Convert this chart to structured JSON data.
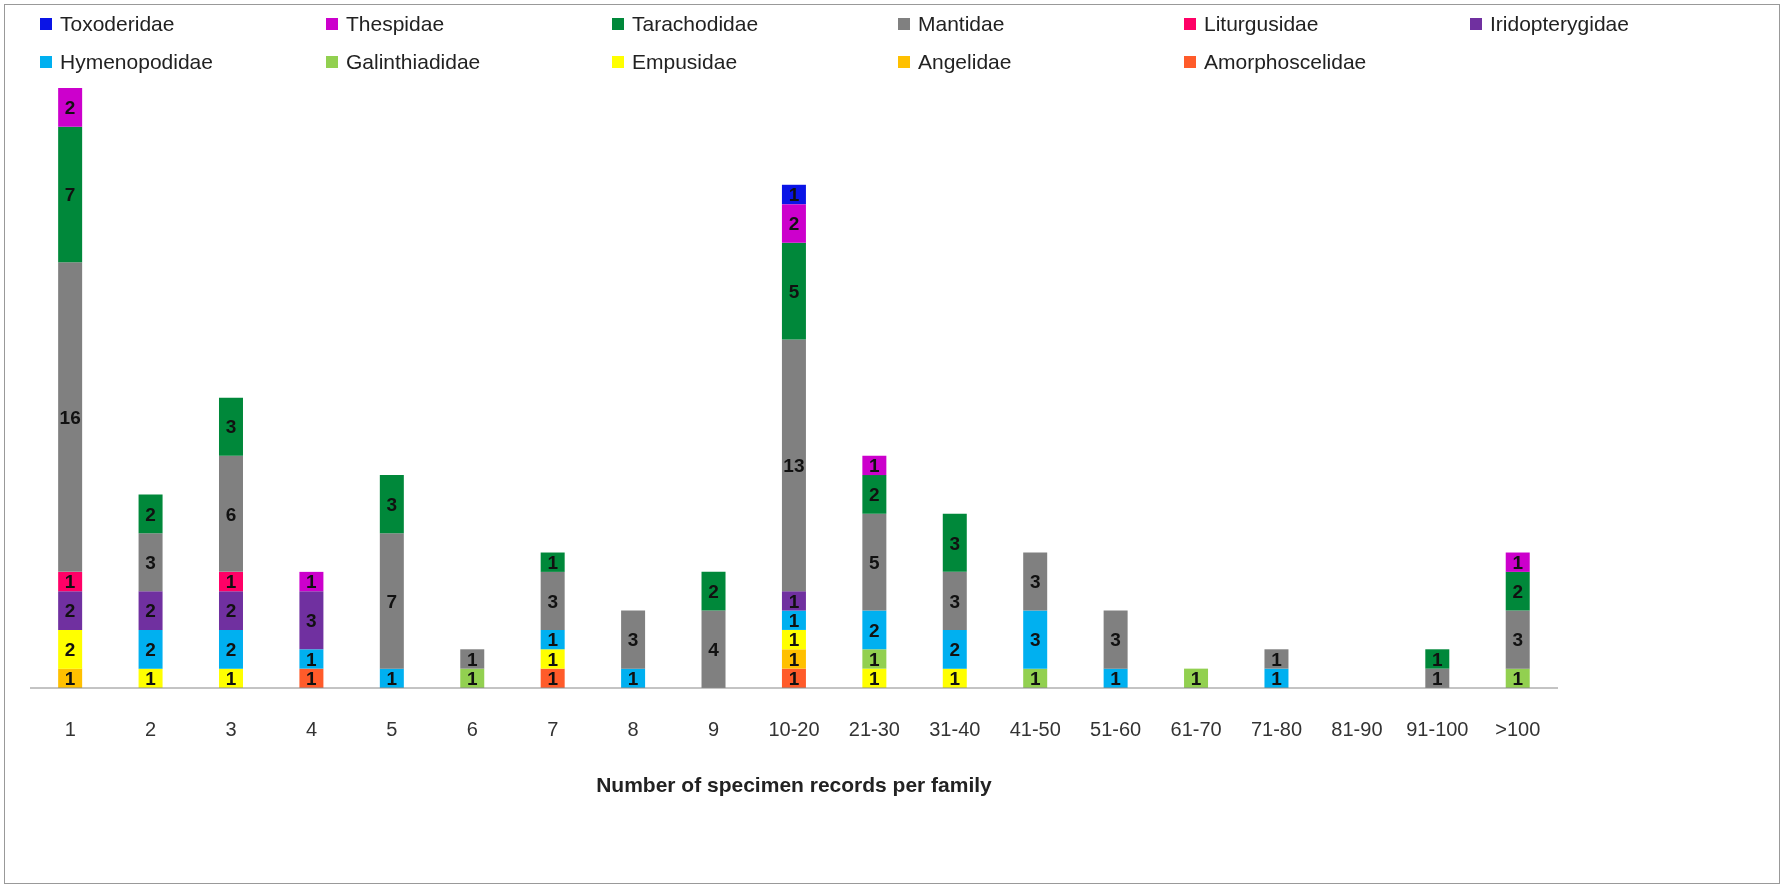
{
  "chart_data": {
    "type": "bar",
    "stacked": true,
    "data_labels": true,
    "legend": "top",
    "grid": false,
    "xlabel": "Number of specimen records per family",
    "categories": [
      "1",
      "2",
      "3",
      "4",
      "5",
      "6",
      "7",
      "8",
      "9",
      "10-20",
      "21-30",
      "31-40",
      "41-50",
      "51-60",
      "61-70",
      "71-80",
      "81-90",
      "91-100",
      ">100"
    ],
    "series": [
      {
        "name": "Amorphoscelidae",
        "color": "#ff5b2a",
        "values": [
          null,
          null,
          null,
          1,
          null,
          null,
          1,
          null,
          null,
          1,
          null,
          null,
          null,
          null,
          null,
          null,
          null,
          null,
          null
        ]
      },
      {
        "name": "Angelidae",
        "color": "#ffc000",
        "values": [
          1,
          null,
          null,
          null,
          null,
          null,
          null,
          null,
          null,
          1,
          null,
          null,
          null,
          null,
          null,
          null,
          null,
          null,
          null
        ]
      },
      {
        "name": "Empusidae",
        "color": "#ffff00",
        "values": [
          2,
          1,
          1,
          null,
          null,
          null,
          1,
          null,
          null,
          1,
          1,
          1,
          null,
          null,
          null,
          null,
          null,
          null,
          null
        ]
      },
      {
        "name": "Galinthiadidae",
        "color": "#92d050",
        "values": [
          null,
          null,
          null,
          null,
          null,
          1,
          null,
          null,
          null,
          null,
          1,
          null,
          1,
          null,
          1,
          null,
          null,
          null,
          1
        ]
      },
      {
        "name": "Hymenopodidae",
        "color": "#00b0f0",
        "values": [
          null,
          2,
          2,
          1,
          1,
          null,
          1,
          1,
          null,
          1,
          2,
          2,
          3,
          1,
          null,
          1,
          null,
          null,
          null
        ]
      },
      {
        "name": "Iridopterygidae",
        "color": "#7030a0",
        "values": [
          2,
          2,
          2,
          3,
          null,
          null,
          null,
          null,
          null,
          1,
          null,
          null,
          null,
          null,
          null,
          null,
          null,
          null,
          null
        ]
      },
      {
        "name": "Liturgusidae",
        "color": "#ff0066",
        "values": [
          1,
          null,
          1,
          null,
          null,
          null,
          null,
          null,
          null,
          null,
          null,
          null,
          null,
          null,
          null,
          null,
          null,
          null,
          null
        ]
      },
      {
        "name": "Mantidae",
        "color": "#808080",
        "values": [
          16,
          3,
          6,
          null,
          7,
          1,
          3,
          3,
          4,
          13,
          5,
          3,
          3,
          3,
          null,
          1,
          null,
          1,
          3
        ]
      },
      {
        "name": "Tarachodidae",
        "color": "#00883a",
        "values": [
          7,
          2,
          3,
          null,
          3,
          null,
          1,
          null,
          2,
          5,
          2,
          3,
          null,
          null,
          null,
          null,
          null,
          1,
          2
        ]
      },
      {
        "name": "Thespidae",
        "color": "#cc00cc",
        "values": [
          2,
          null,
          null,
          1,
          null,
          null,
          null,
          null,
          null,
          2,
          1,
          null,
          null,
          null,
          null,
          null,
          null,
          null,
          1
        ]
      },
      {
        "name": "Toxoderidae",
        "color": "#0a14e6",
        "values": [
          null,
          null,
          null,
          null,
          null,
          null,
          null,
          null,
          null,
          1,
          null,
          null,
          null,
          null,
          null,
          null,
          null,
          null,
          null
        ]
      }
    ]
  }
}
